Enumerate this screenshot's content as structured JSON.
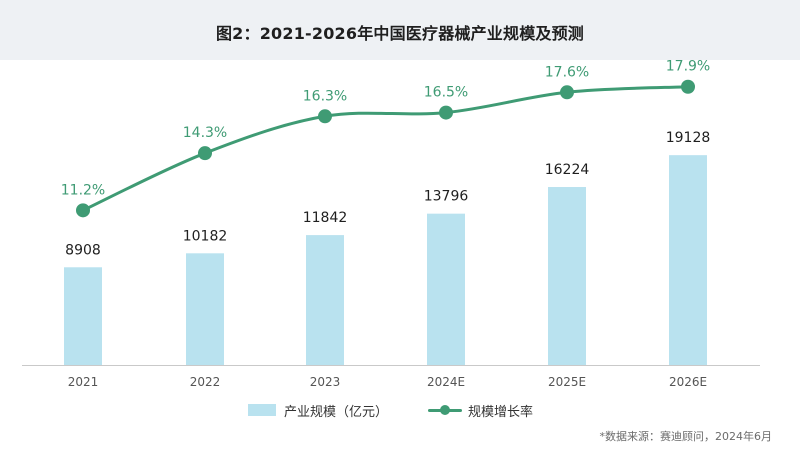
{
  "title": "图2：2021-2026年中国医疗器械产业规模及预测",
  "chart_data": {
    "type": "bar",
    "categories": [
      "2021",
      "2022",
      "2023",
      "2024E",
      "2025E",
      "2026E"
    ],
    "series": [
      {
        "name": "产业规模（亿元）",
        "type": "bar",
        "values": [
          8908,
          10182,
          11842,
          13796,
          16224,
          19128
        ]
      },
      {
        "name": "规模增长率",
        "type": "line",
        "values": [
          11.2,
          14.3,
          16.3,
          16.5,
          17.6,
          17.9
        ],
        "value_labels": [
          "11.2%",
          "14.3%",
          "16.3%",
          "16.5%",
          "17.6%",
          "17.9%"
        ]
      }
    ],
    "xlabel": "",
    "ylabel": "",
    "legend_position": "bottom",
    "grid": false
  },
  "legend": {
    "bar_label": "产业规模（亿元）",
    "line_label": "规模增长率"
  },
  "source": "*数据来源：赛迪顾问，2024年6月",
  "colors": {
    "bar": "#b9e2ef",
    "line": "#3f9b74",
    "pct_text": "#3f9b74",
    "value_text": "#1f1f1f",
    "axis_text": "#555555"
  }
}
